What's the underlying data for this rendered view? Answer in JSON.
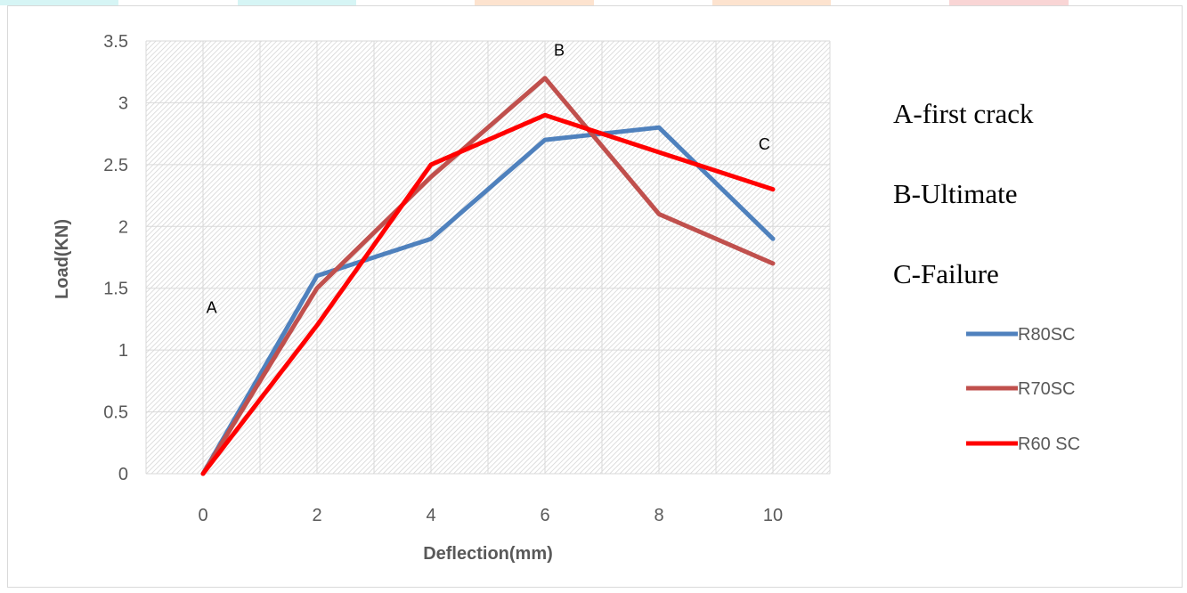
{
  "colors": {
    "strip": [
      "#d6f5f5",
      "#ffffff",
      "#d6f5f5",
      "#ffffff",
      "#fde3cf",
      "#ffffff",
      "#fde3cf",
      "#ffffff",
      "#f9d5d5",
      "#ffffff"
    ]
  },
  "chart_data": {
    "type": "line",
    "title": "",
    "xlabel": "Deflection(mm)",
    "ylabel": "Load(KN)",
    "x": [
      0,
      2,
      4,
      6,
      8,
      10
    ],
    "xlim": [
      -1,
      11
    ],
    "ylim": [
      0,
      3.5
    ],
    "x_ticks": [
      "0",
      "2",
      "4",
      "6",
      "8",
      "10"
    ],
    "y_ticks": [
      "0",
      "0.5",
      "1",
      "1.5",
      "2",
      "2.5",
      "3",
      "3.5"
    ],
    "grid": true,
    "legend_position": "right",
    "series": [
      {
        "name": "R80SC",
        "color": "#4f81bd",
        "values": [
          0,
          1.6,
          1.9,
          2.7,
          2.8,
          1.9
        ]
      },
      {
        "name": "R70SC",
        "color": "#c0504d",
        "values": [
          0,
          1.5,
          2.4,
          3.2,
          2.1,
          1.7
        ]
      },
      {
        "name": "R60 SC",
        "color": "#ff0000",
        "values": [
          0,
          1.2,
          2.5,
          2.9,
          2.6,
          2.3
        ]
      }
    ],
    "annotations": [
      {
        "text": "A",
        "x": 0.15,
        "y": 1.3
      },
      {
        "text": "B",
        "x": 6.25,
        "y": 3.38
      },
      {
        "text": "C",
        "x": 9.85,
        "y": 2.62
      }
    ],
    "notes": [
      "A-first crack",
      "B-Ultimate",
      "C-Failure"
    ]
  }
}
